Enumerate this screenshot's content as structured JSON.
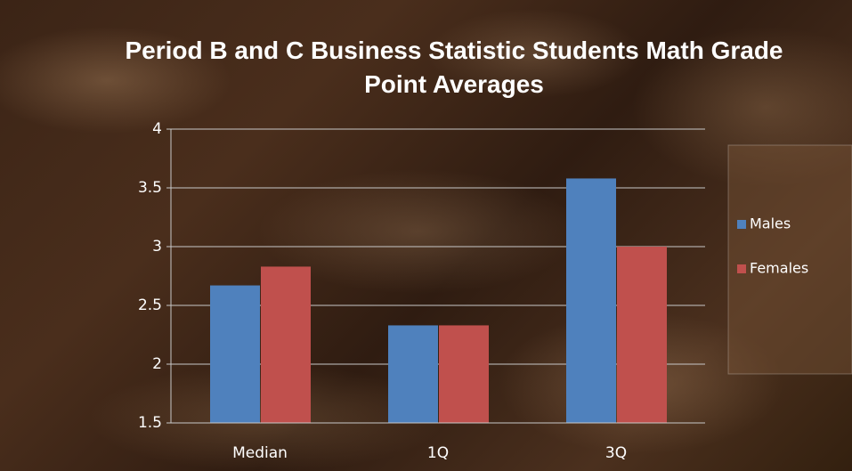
{
  "chart_data": {
    "type": "bar",
    "title": "Period B and C Business Statistic Students Math Grade Point Averages",
    "categories": [
      "Median",
      "1Q",
      "3Q"
    ],
    "series": [
      {
        "name": "Males",
        "color": "#4f81bd",
        "values": [
          2.67,
          2.33,
          3.58
        ]
      },
      {
        "name": "Females",
        "color": "#c0504d",
        "values": [
          2.83,
          2.33,
          3.0
        ]
      }
    ],
    "ylim": [
      1.5,
      4
    ],
    "yticks": [
      1.5,
      2,
      2.5,
      3,
      3.5,
      4
    ],
    "grid": true,
    "legend": "right"
  }
}
